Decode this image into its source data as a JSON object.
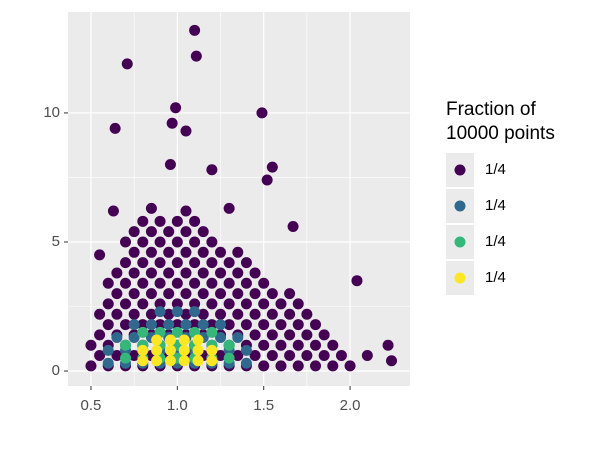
{
  "chart_data": {
    "type": "scatter",
    "legend_title": [
      "Fraction of",
      "10000 points"
    ],
    "xlim": [
      0.367,
      2.347
    ],
    "ylim": [
      -0.58,
      13.91
    ],
    "xticks": [
      0.5,
      {
        "value": 1,
        "label": "1.0"
      },
      1.5,
      {
        "value": 2,
        "label": "2.0"
      }
    ],
    "yticks": [
      0,
      5,
      10
    ],
    "grid": true,
    "series": [
      {
        "name": "1/4",
        "color": "#440154",
        "x": [
          0.5,
          0.6,
          0.7,
          0.8,
          0.9,
          1.0,
          1.1,
          1.2,
          1.3,
          1.4,
          1.5,
          1.6,
          1.7,
          1.8,
          1.9,
          2.0,
          0.55,
          0.65,
          0.75,
          0.85,
          0.95,
          1.05,
          1.15,
          1.25,
          1.35,
          1.45,
          1.55,
          1.65,
          1.75,
          1.85,
          1.95,
          0.5,
          0.6,
          0.7,
          0.8,
          0.9,
          1.0,
          1.1,
          1.2,
          1.3,
          1.4,
          1.5,
          1.6,
          1.7,
          1.8,
          1.9,
          0.55,
          0.65,
          0.75,
          0.85,
          0.95,
          1.05,
          1.15,
          1.25,
          1.35,
          1.45,
          1.55,
          1.65,
          1.75,
          1.85,
          0.6,
          0.7,
          0.8,
          0.9,
          1.0,
          1.1,
          1.2,
          1.3,
          1.4,
          1.5,
          1.6,
          1.7,
          1.8,
          0.55,
          0.65,
          0.75,
          0.85,
          0.95,
          1.05,
          1.15,
          1.25,
          1.35,
          1.45,
          1.55,
          1.65,
          1.75,
          0.6,
          0.7,
          0.8,
          0.9,
          1.0,
          1.1,
          1.2,
          1.3,
          1.4,
          1.5,
          1.6,
          1.7,
          0.65,
          0.75,
          0.85,
          0.95,
          1.05,
          1.15,
          1.25,
          1.35,
          1.45,
          1.55,
          1.65,
          0.6,
          0.7,
          0.8,
          0.9,
          1.0,
          1.1,
          1.2,
          1.3,
          1.4,
          1.5,
          0.65,
          0.75,
          0.85,
          0.95,
          1.05,
          1.15,
          1.25,
          1.35,
          1.45,
          0.7,
          0.8,
          0.9,
          1.0,
          1.1,
          1.2,
          1.3,
          1.4,
          0.75,
          0.85,
          0.95,
          1.05,
          1.15,
          1.25,
          1.35,
          0.7,
          0.8,
          0.9,
          1.0,
          1.1,
          1.2,
          0.75,
          0.85,
          0.95,
          1.05,
          1.15,
          0.8,
          0.9,
          1.0,
          1.1,
          0.85,
          1.05,
          0.71,
          1.1,
          1.11,
          0.99,
          0.97,
          1.05,
          0.64,
          1.49,
          0.96,
          1.55,
          1.52,
          2.04,
          2.22,
          2.24,
          2.1,
          1.67,
          0.55,
          0.63,
          1.3,
          1.2
        ],
        "values": [
          0.2,
          0.2,
          0.2,
          0.2,
          0.2,
          0.2,
          0.2,
          0.2,
          0.2,
          0.2,
          0.2,
          0.2,
          0.2,
          0.2,
          0.2,
          0.2,
          0.6,
          0.6,
          0.6,
          0.6,
          0.6,
          0.6,
          0.6,
          0.6,
          0.6,
          0.6,
          0.6,
          0.6,
          0.6,
          0.6,
          0.6,
          1.0,
          1.0,
          1.0,
          1.0,
          1.0,
          1.0,
          1.0,
          1.0,
          1.0,
          1.0,
          1.0,
          1.0,
          1.0,
          1.0,
          1.0,
          1.4,
          1.4,
          1.4,
          1.4,
          1.4,
          1.4,
          1.4,
          1.4,
          1.4,
          1.4,
          1.4,
          1.4,
          1.4,
          1.4,
          1.8,
          1.8,
          1.8,
          1.8,
          1.8,
          1.8,
          1.8,
          1.8,
          1.8,
          1.8,
          1.8,
          1.8,
          1.8,
          2.2,
          2.2,
          2.2,
          2.2,
          2.2,
          2.2,
          2.2,
          2.2,
          2.2,
          2.2,
          2.2,
          2.2,
          2.2,
          2.6,
          2.6,
          2.6,
          2.6,
          2.6,
          2.6,
          2.6,
          2.6,
          2.6,
          2.6,
          2.6,
          2.6,
          3.0,
          3.0,
          3.0,
          3.0,
          3.0,
          3.0,
          3.0,
          3.0,
          3.0,
          3.0,
          3.0,
          3.4,
          3.4,
          3.4,
          3.4,
          3.4,
          3.4,
          3.4,
          3.4,
          3.4,
          3.4,
          3.8,
          3.8,
          3.8,
          3.8,
          3.8,
          3.8,
          3.8,
          3.8,
          3.8,
          4.2,
          4.2,
          4.2,
          4.2,
          4.2,
          4.2,
          4.2,
          4.2,
          4.6,
          4.6,
          4.6,
          4.6,
          4.6,
          4.6,
          4.6,
          5.0,
          5.0,
          5.0,
          5.0,
          5.0,
          5.0,
          5.4,
          5.4,
          5.4,
          5.4,
          5.4,
          5.8,
          5.8,
          5.8,
          5.8,
          6.3,
          6.2,
          11.9,
          13.2,
          12.2,
          10.2,
          9.6,
          9.3,
          9.4,
          10.0,
          8.0,
          7.9,
          7.4,
          3.5,
          1.0,
          0.4,
          0.6,
          5.6,
          4.5,
          6.2,
          6.3,
          7.8
        ]
      },
      {
        "name": "1/4",
        "color": "#31688e",
        "x": [
          0.6,
          0.7,
          0.8,
          0.9,
          1.0,
          1.1,
          1.2,
          1.3,
          1.4,
          0.6,
          0.7,
          0.8,
          0.9,
          1.0,
          1.1,
          1.2,
          1.3,
          1.4,
          0.65,
          0.75,
          0.85,
          0.95,
          1.05,
          1.15,
          1.25,
          1.35,
          0.75,
          0.85,
          0.95,
          1.05,
          1.15,
          1.25,
          0.9,
          1.0,
          1.1
        ],
        "values": [
          0.3,
          0.3,
          0.3,
          0.3,
          0.3,
          0.3,
          0.3,
          0.3,
          0.3,
          0.8,
          0.8,
          0.8,
          0.8,
          0.8,
          0.8,
          0.8,
          0.8,
          0.8,
          1.3,
          1.3,
          1.3,
          1.3,
          1.3,
          1.3,
          1.3,
          1.3,
          1.8,
          1.8,
          1.8,
          1.8,
          1.8,
          1.8,
          2.3,
          2.3,
          2.3
        ]
      },
      {
        "name": "1/4",
        "color": "#35b779",
        "x": [
          0.7,
          0.8,
          0.9,
          1.0,
          1.1,
          1.2,
          1.3,
          0.7,
          0.8,
          0.9,
          1.0,
          1.1,
          1.2,
          1.3,
          0.8,
          0.9,
          1.0,
          1.1,
          1.2
        ],
        "values": [
          0.5,
          0.5,
          0.5,
          0.5,
          0.5,
          0.5,
          0.5,
          1.0,
          1.0,
          1.0,
          1.0,
          1.0,
          1.0,
          1.0,
          1.5,
          1.5,
          1.5,
          1.5,
          1.5
        ]
      },
      {
        "name": "1/4",
        "color": "#fde725",
        "x": [
          0.8,
          0.88,
          0.96,
          1.04,
          1.12,
          1.2,
          0.8,
          0.88,
          0.96,
          1.04,
          1.12,
          1.2,
          0.88,
          0.96,
          1.04,
          1.12
        ],
        "values": [
          0.4,
          0.4,
          0.4,
          0.4,
          0.4,
          0.4,
          0.8,
          0.8,
          0.8,
          0.8,
          0.8,
          0.8,
          1.2,
          1.2,
          1.2,
          1.2
        ]
      }
    ]
  }
}
